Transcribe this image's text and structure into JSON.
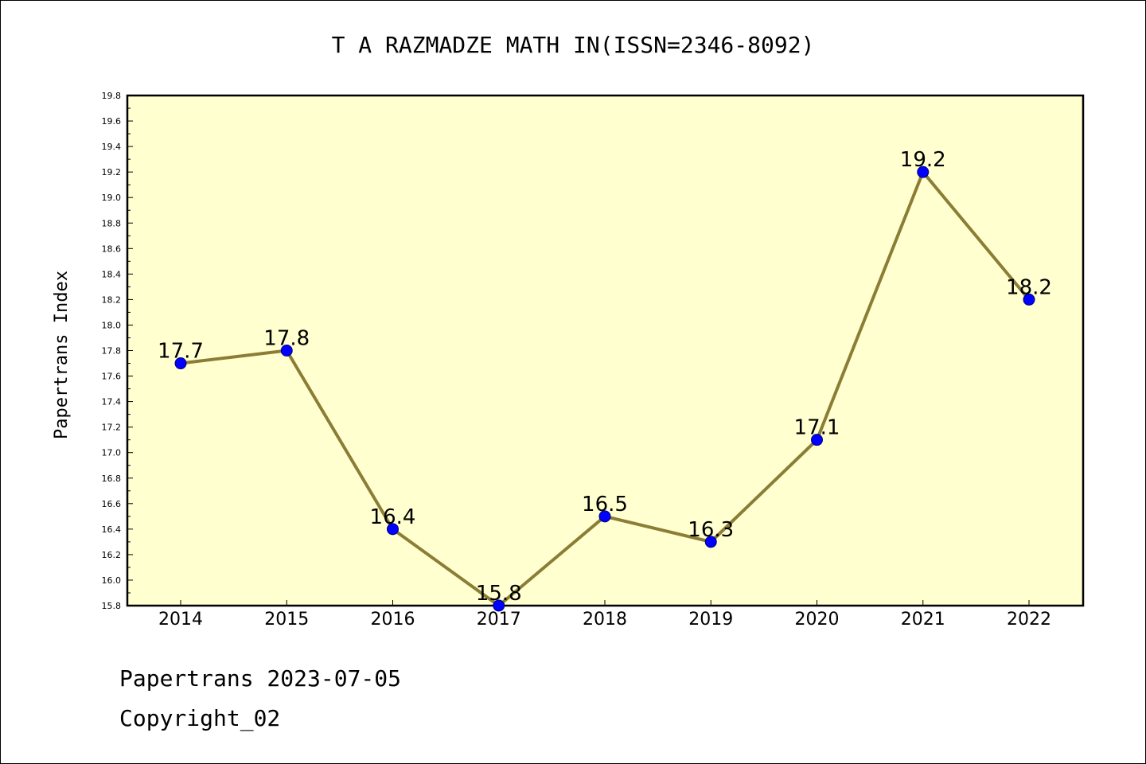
{
  "chart_data": {
    "type": "line",
    "title": "T A RAZMADZE MATH IN(ISSN=2346-8092)",
    "xlabel": "",
    "ylabel": "Papertrans Index",
    "categories": [
      "2014",
      "2015",
      "2016",
      "2017",
      "2018",
      "2019",
      "2020",
      "2021",
      "2022"
    ],
    "values": [
      17.7,
      17.8,
      16.4,
      15.8,
      16.5,
      16.3,
      17.1,
      19.2,
      18.2
    ],
    "data_labels": [
      "17.7",
      "17.8",
      "16.4",
      "15.8",
      "16.5",
      "16.3",
      "17.1",
      "19.2",
      "18.2"
    ],
    "ylim": [
      15.8,
      19.8
    ],
    "yticks": [
      "15.8",
      "16.0",
      "16.2",
      "16.4",
      "16.6",
      "16.8",
      "17.0",
      "17.2",
      "17.4",
      "17.6",
      "17.8",
      "18.0",
      "18.2",
      "18.4",
      "18.6",
      "18.8",
      "19.0",
      "19.2",
      "19.4",
      "19.6",
      "19.8"
    ],
    "grid": false,
    "colors": {
      "plot_background": "#ffffd0",
      "line": "#8b7d35",
      "marker_fill": "#0000ff",
      "marker_stroke": "#000080"
    }
  },
  "footer": {
    "source": "Papertrans 2023-07-05",
    "copyright": "Copyright_02"
  }
}
